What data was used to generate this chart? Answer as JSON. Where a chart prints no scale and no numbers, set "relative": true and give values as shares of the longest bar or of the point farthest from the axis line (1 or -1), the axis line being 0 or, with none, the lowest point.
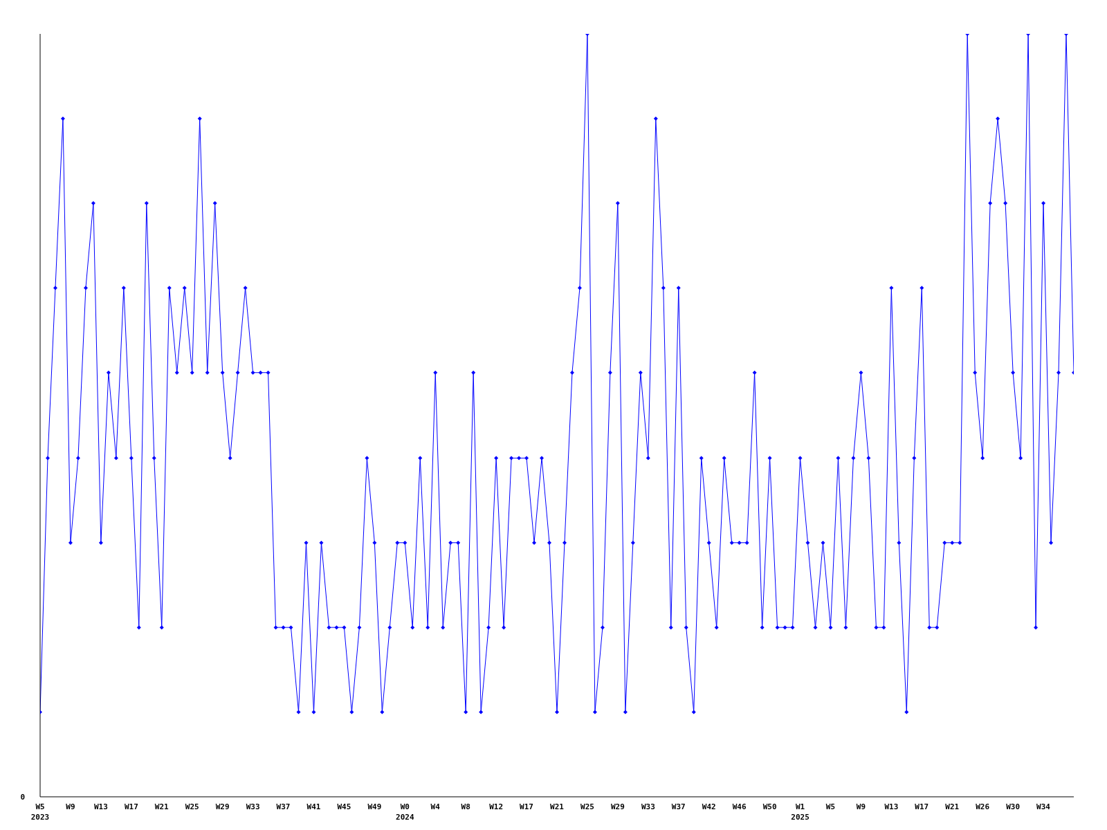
{
  "chart_data": {
    "type": "line",
    "relative": true,
    "color": "#0000ff",
    "marker": "diamond",
    "line_style": "solid",
    "grid": false,
    "legend": false,
    "categories": [
      "W5\n2023",
      null,
      null,
      null,
      "W9",
      null,
      null,
      null,
      "W13",
      null,
      null,
      null,
      "W17",
      null,
      null,
      null,
      "W21",
      null,
      null,
      null,
      "W25",
      null,
      null,
      null,
      "W29",
      null,
      null,
      null,
      "W33",
      null,
      null,
      null,
      "W37",
      null,
      null,
      null,
      "W41",
      null,
      null,
      null,
      "W45",
      null,
      null,
      null,
      "W49",
      null,
      null,
      null,
      "W0\n2024",
      null,
      null,
      null,
      "W4",
      null,
      null,
      null,
      "W8",
      null,
      null,
      null,
      "W12",
      null,
      null,
      null,
      "W17",
      null,
      null,
      null,
      "W21",
      null,
      null,
      null,
      "W25",
      null,
      null,
      null,
      "W29",
      null,
      null,
      null,
      "W33",
      null,
      null,
      null,
      "W37",
      null,
      null,
      null,
      "W42",
      null,
      null,
      null,
      "W46",
      null,
      null,
      null,
      "W50",
      null,
      null,
      null,
      "W1\n2025",
      null,
      null,
      null,
      "W5",
      null,
      null,
      null,
      "W9",
      null,
      null,
      null,
      "W13",
      null,
      null,
      null,
      "W17",
      null,
      null,
      null,
      "W21",
      null,
      null,
      null,
      "W26",
      null,
      null,
      null,
      "W30",
      null,
      null,
      null,
      "W34",
      null,
      null,
      null,
      null
    ],
    "values": [
      0.111,
      0.444,
      0.667,
      0.889,
      0.333,
      0.444,
      0.667,
      0.778,
      0.333,
      0.556,
      0.444,
      0.667,
      0.444,
      0.222,
      0.778,
      0.444,
      0.222,
      0.667,
      0.556,
      0.667,
      0.556,
      0.889,
      0.556,
      0.778,
      0.556,
      0.444,
      0.556,
      0.667,
      0.556,
      0.556,
      0.556,
      0.222,
      0.222,
      0.222,
      0.111,
      0.333,
      0.111,
      0.333,
      0.222,
      0.222,
      0.222,
      0.111,
      0.222,
      0.444,
      0.333,
      0.111,
      0.222,
      0.333,
      0.333,
      0.222,
      0.444,
      0.222,
      0.556,
      0.222,
      0.333,
      0.333,
      0.111,
      0.556,
      0.111,
      0.222,
      0.444,
      0.222,
      0.444,
      0.444,
      0.444,
      0.333,
      0.444,
      0.333,
      0.111,
      0.333,
      0.556,
      0.667,
      1,
      0.111,
      0.222,
      0.556,
      0.778,
      0.111,
      0.333,
      0.556,
      0.444,
      0.889,
      0.667,
      0.222,
      0.667,
      0.222,
      0.111,
      0.444,
      0.333,
      0.222,
      0.444,
      0.333,
      0.333,
      0.333,
      0.556,
      0.222,
      0.444,
      0.222,
      0.222,
      0.222,
      0.444,
      0.333,
      0.222,
      0.333,
      0.222,
      0.444,
      0.222,
      0.444,
      0.556,
      0.444,
      0.222,
      0.222,
      0.667,
      0.333,
      0.111,
      0.444,
      0.667,
      0.222,
      0.222,
      0.333,
      0.333,
      0.333,
      1,
      0.556,
      0.444,
      0.778,
      0.889,
      0.778,
      0.556,
      0.444,
      1,
      0.222,
      0.778,
      0.333,
      0.556,
      1,
      0.556
    ],
    "annotations": [
      "0"
    ]
  }
}
